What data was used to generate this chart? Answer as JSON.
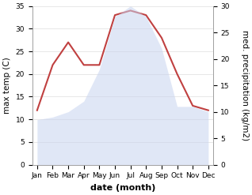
{
  "months": [
    "Jan",
    "Feb",
    "Mar",
    "Apr",
    "May",
    "Jun",
    "Jul",
    "Aug",
    "Sep",
    "Oct",
    "Nov",
    "Dec"
  ],
  "max_temp": [
    12,
    22,
    27,
    22,
    22,
    33,
    34,
    33,
    28,
    20,
    13,
    12
  ],
  "precipitation": [
    8.5,
    9,
    10,
    12,
    18,
    28,
    30,
    28,
    22,
    11,
    11,
    10
  ],
  "temp_ylim": [
    0,
    35
  ],
  "precip_ylim": [
    0,
    30
  ],
  "line_color": "#c04040",
  "fill_color": "#c8d4f0",
  "xlabel": "date (month)",
  "ylabel_left": "max temp (C)",
  "ylabel_right": "med. precipitation (kg/m2)",
  "background_color": "#ffffff",
  "tick_fontsize": 6.5,
  "label_fontsize": 7.5
}
